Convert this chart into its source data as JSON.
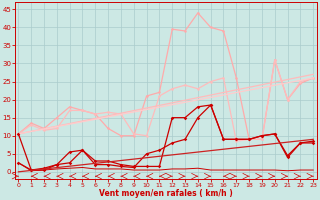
{
  "bg_color": "#cce8e4",
  "grid_color": "#aacccc",
  "xlabel": "Vent moyen/en rafales ( km/h )",
  "xlabel_color": "#cc0000",
  "tick_color": "#cc0000",
  "x_ticks": [
    0,
    1,
    2,
    3,
    4,
    5,
    6,
    7,
    8,
    9,
    10,
    11,
    12,
    13,
    14,
    15,
    16,
    17,
    18,
    19,
    20,
    21,
    22,
    23
  ],
  "y_ticks": [
    0,
    5,
    10,
    15,
    20,
    25,
    30,
    35,
    40,
    45
  ],
  "ylim": [
    -2,
    47
  ],
  "xlim": [
    -0.3,
    23.3
  ],
  "lines": [
    {
      "x": [
        0,
        1,
        2,
        3,
        4,
        5,
        6,
        7,
        8,
        9,
        10,
        11,
        12,
        13,
        14,
        15,
        16,
        17,
        18,
        19,
        20,
        21,
        22,
        23
      ],
      "y": [
        10.5,
        13.5,
        12,
        15,
        18,
        17,
        16,
        12,
        10,
        10,
        21,
        22,
        39.5,
        39,
        44,
        40,
        39,
        26,
        9,
        9,
        31,
        20,
        24.5,
        26
      ],
      "color": "#ffaaaa",
      "lw": 0.9,
      "marker": "o",
      "ms": 1.8
    },
    {
      "x": [
        0,
        1,
        2,
        3,
        4,
        5,
        6,
        7,
        8,
        9,
        10,
        11,
        12,
        13,
        14,
        15,
        16,
        17,
        18,
        19,
        20,
        21,
        22,
        23
      ],
      "y": [
        10.5,
        13,
        11.5,
        12,
        17,
        17,
        16,
        16.5,
        16,
        10.5,
        10,
        21,
        23,
        24,
        23,
        25,
        26,
        8.5,
        9,
        9,
        31,
        20,
        25,
        26
      ],
      "color": "#ffbbbb",
      "lw": 0.9,
      "marker": "o",
      "ms": 1.8
    },
    {
      "x": [
        0,
        23
      ],
      "y": [
        10.5,
        27
      ],
      "color": "#ffbbbb",
      "lw": 0.9,
      "marker": null,
      "ms": 0
    },
    {
      "x": [
        0,
        23
      ],
      "y": [
        10.5,
        26
      ],
      "color": "#ffcccc",
      "lw": 0.9,
      "marker": null,
      "ms": 0
    },
    {
      "x": [
        0,
        1,
        2,
        3,
        4,
        5,
        6,
        7,
        8,
        9,
        10,
        11,
        12,
        13,
        14,
        15,
        16,
        17,
        18,
        19,
        20,
        21,
        22,
        23
      ],
      "y": [
        2.5,
        0.5,
        1,
        2,
        5.5,
        6,
        2,
        2,
        1.5,
        1.2,
        5,
        6,
        8,
        9,
        15,
        18.5,
        9,
        9,
        9,
        10,
        10.5,
        4.5,
        8,
        8.5
      ],
      "color": "#cc0000",
      "lw": 0.9,
      "marker": "D",
      "ms": 1.8
    },
    {
      "x": [
        0,
        1,
        2,
        3,
        4,
        5,
        6,
        7,
        8,
        9,
        10,
        11,
        12,
        13,
        14,
        15,
        16,
        17,
        18,
        19,
        20,
        21,
        22,
        23
      ],
      "y": [
        10.5,
        0.5,
        0.5,
        2,
        2.5,
        6,
        3,
        3,
        2,
        1.5,
        1.5,
        1.5,
        15,
        15,
        18,
        18.5,
        9,
        9,
        9,
        10,
        10.5,
        4,
        8,
        8
      ],
      "color": "#cc0000",
      "lw": 0.9,
      "marker": "D",
      "ms": 1.8
    },
    {
      "x": [
        0,
        1,
        2,
        3,
        4,
        5,
        6,
        7,
        8,
        9,
        10,
        11,
        12,
        13,
        14,
        15,
        16,
        17,
        18,
        19,
        20,
        21,
        22,
        23
      ],
      "y": [
        2.5,
        0.3,
        0.5,
        0.8,
        1.0,
        1.2,
        0.8,
        0.8,
        0.8,
        0.5,
        0.5,
        0.5,
        0.8,
        0.8,
        1.0,
        0.5,
        0.5,
        0.5,
        0.5,
        0.5,
        0.5,
        0.3,
        0.5,
        0.5
      ],
      "color": "#cc0000",
      "lw": 0.7,
      "marker": null,
      "ms": 0
    },
    {
      "x": [
        0,
        23
      ],
      "y": [
        0,
        9
      ],
      "color": "#cc2222",
      "lw": 0.9,
      "marker": null,
      "ms": 0
    }
  ],
  "arrow_color": "#cc0000",
  "arrow_directions": [
    1,
    -1,
    -1,
    -1,
    -1,
    -1,
    -1,
    -1,
    -1,
    -1,
    -1,
    -1,
    1,
    1,
    1,
    1,
    -1,
    1,
    1,
    1,
    1,
    1,
    1,
    1
  ]
}
